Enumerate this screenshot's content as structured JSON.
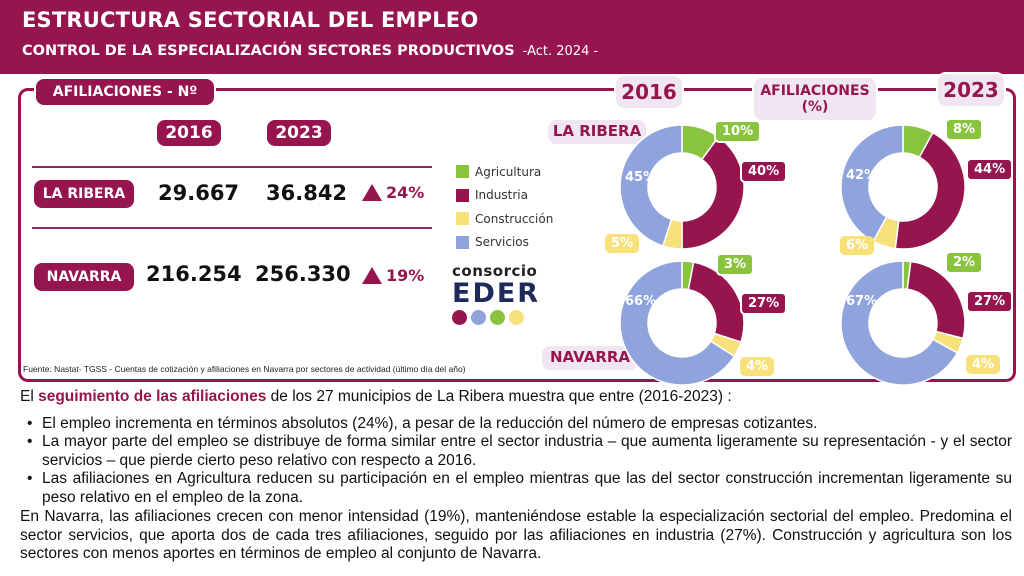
{
  "header": {
    "title": "ESTRUCTURA SECTORIAL DEL EMPLEO",
    "subtitle": "CONTROL DE LA ESPECIALIZACIÓN SECTORES PRODUCTIVOS",
    "update": "-Act. 2024 -"
  },
  "table": {
    "title": "AFILIACIONES  - Nº",
    "years": [
      "2016",
      "2023"
    ],
    "rows": [
      {
        "region": "LA RIBERA",
        "v2016": "29.667",
        "v2023": "36.842",
        "change": "24%"
      },
      {
        "region": "NAVARRA",
        "v2016": "216.254",
        "v2023": "256.330",
        "change": "19%"
      }
    ]
  },
  "legend": [
    {
      "label": "Agricultura",
      "color": "#8ac43f"
    },
    {
      "label": "Industria",
      "color": "#97154f"
    },
    {
      "label": "Construcción",
      "color": "#f8e07a"
    },
    {
      "label": "Servicios",
      "color": "#8fa3dc"
    }
  ],
  "logo": {
    "line1": "consorcio",
    "line2": "EDER"
  },
  "source": "Fuente: Nastat- TGSS - Cuentas de cotización y afiliaciones en Navarra  por sectores de actividad (último día del año)",
  "donuts_header": {
    "year_left": "2016",
    "year_right": "2023",
    "label": "AFILIACIONES (%)"
  },
  "region_labels": {
    "ribera": "LA RIBERA",
    "navarra": "NAVARRA"
  },
  "chart_data": [
    {
      "type": "pie",
      "title": "LA RIBERA 2016",
      "categories": [
        "Agricultura",
        "Industria",
        "Construcción",
        "Servicios"
      ],
      "values": [
        10,
        40,
        5,
        45
      ],
      "labels": [
        "10%",
        "40%",
        "5%",
        "45%"
      ]
    },
    {
      "type": "pie",
      "title": "LA RIBERA 2023",
      "categories": [
        "Agricultura",
        "Industria",
        "Construcción",
        "Servicios"
      ],
      "values": [
        8,
        44,
        6,
        42
      ],
      "labels": [
        "8%",
        "44%",
        "6%",
        "42%"
      ]
    },
    {
      "type": "pie",
      "title": "NAVARRA 2016",
      "categories": [
        "Agricultura",
        "Industria",
        "Construcción",
        "Servicios"
      ],
      "values": [
        3,
        27,
        4,
        66
      ],
      "labels": [
        "3%",
        "27%",
        "4%",
        "66%"
      ]
    },
    {
      "type": "pie",
      "title": "NAVARRA 2023",
      "categories": [
        "Agricultura",
        "Industria",
        "Construcción",
        "Servicios"
      ],
      "values": [
        2,
        27,
        4,
        67
      ],
      "labels": [
        "2%",
        "27%",
        "4%",
        "67%"
      ]
    }
  ],
  "text": {
    "intro_before": "El ",
    "intro_bold": "seguimiento de las afiliaciones",
    "intro_after": " de los 27 municipios de La Ribera muestra que entre (2016-2023) :",
    "bullets": [
      "El empleo incrementa en términos absolutos (24%), a pesar de la reducción del número de empresas cotizantes.",
      "La mayor parte del empleo se distribuye de forma similar entre el sector industria – que aumenta ligeramente su representación - y el sector servicios – que pierde cierto peso relativo con respecto a  2016.",
      " Las afiliaciones en Agricultura reducen su participación en el empleo mientras que las del sector construcción incrementan ligeramente su peso relativo en el empleo de la zona."
    ],
    "paragraph": "En Navarra, las afiliaciones crecen con menor intensidad (19%), manteniéndose estable la especialización sectorial del empleo. Predomina el sector servicios, que aporta dos de cada tres afiliaciones, seguido por las afiliaciones en industria (27%). Construcción y agricultura son los sectores con menos aportes en términos de empleo al conjunto de Navarra."
  }
}
